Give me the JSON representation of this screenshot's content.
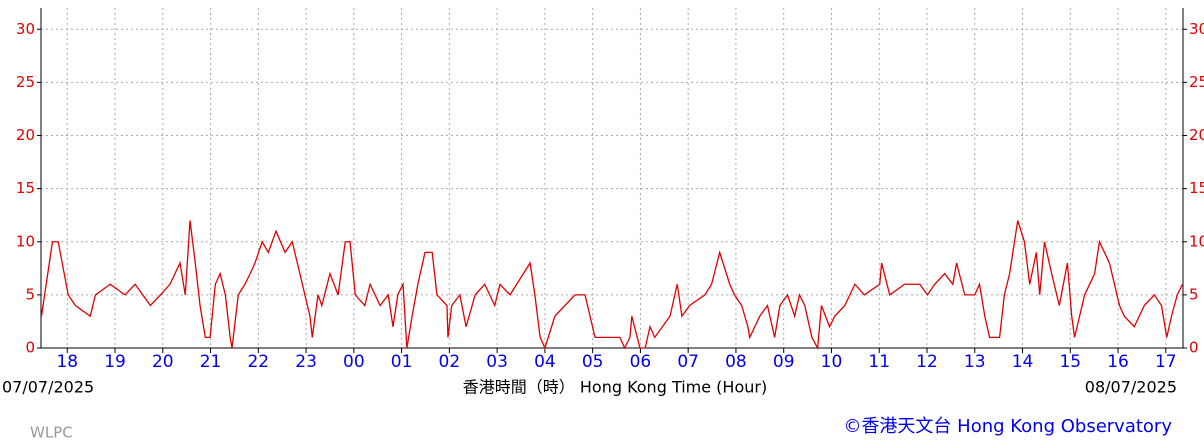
{
  "chart_data": {
    "type": "line",
    "color": "#e00000",
    "grid": true,
    "x": [
      17.46,
      17.69,
      17.81,
      18.02,
      18.17,
      18.48,
      18.59,
      18.9,
      19.21,
      19.42,
      19.74,
      19.95,
      20.15,
      20.36,
      20.47,
      20.57,
      20.68,
      20.78,
      20.89,
      20.99,
      21.1,
      21.2,
      21.31,
      21.41,
      21.45,
      21.58,
      21.72,
      21.83,
      21.93,
      22.08,
      22.21,
      22.37,
      22.56,
      22.71,
      22.87,
      23.08,
      23.13,
      23.25,
      23.33,
      23.5,
      23.67,
      23.82,
      23.92,
      24.03,
      24.23,
      24.34,
      24.55,
      24.72,
      24.82,
      24.92,
      25.03,
      25.11,
      25.22,
      25.34,
      25.49,
      25.64,
      25.74,
      25.95,
      25.97,
      26.05,
      26.22,
      26.35,
      26.54,
      26.74,
      26.95,
      27.06,
      27.27,
      27.69,
      27.79,
      27.9,
      28.0,
      28.21,
      28.42,
      28.63,
      28.84,
      29.05,
      29.57,
      29.67,
      29.78,
      29.82,
      29.99,
      30.1,
      30.2,
      30.3,
      30.62,
      30.77,
      30.87,
      31.03,
      31.35,
      31.49,
      31.66,
      31.87,
      31.97,
      32.12,
      32.25,
      32.29,
      32.5,
      32.66,
      32.81,
      32.92,
      33.08,
      33.23,
      33.33,
      33.44,
      33.59,
      33.71,
      33.79,
      33.96,
      34.07,
      34.28,
      34.49,
      34.69,
      35.01,
      35.05,
      35.22,
      35.53,
      35.85,
      36.01,
      36.16,
      36.37,
      36.54,
      36.62,
      36.79,
      37.0,
      37.1,
      37.21,
      37.31,
      37.52,
      37.62,
      37.73,
      37.9,
      38.04,
      38.15,
      38.29,
      38.36,
      38.46,
      38.61,
      38.77,
      38.94,
      39.03,
      39.09,
      39.3,
      39.51,
      39.61,
      39.82,
      40.03,
      40.13,
      40.34,
      40.55,
      40.76,
      40.91,
      41.02,
      41.12,
      41.24,
      41.35
    ],
    "values": [
      3,
      10,
      10,
      5,
      4,
      3,
      5,
      6,
      5,
      6,
      4,
      5,
      6,
      8,
      5,
      12,
      8,
      4,
      1,
      1,
      6,
      7,
      5,
      1,
      0,
      5,
      6,
      7,
      8,
      10,
      9,
      11,
      9,
      10,
      7,
      3,
      1,
      5,
      4,
      7,
      5,
      10,
      10,
      5,
      4,
      6,
      4,
      5,
      2,
      5,
      6,
      0,
      3,
      6,
      9,
      9,
      5,
      4,
      1,
      4,
      5,
      2,
      5,
      6,
      4,
      6,
      5,
      8,
      5,
      1,
      0,
      3,
      4,
      5,
      5,
      1,
      1,
      0,
      1,
      3,
      0,
      0,
      2,
      1,
      3,
      6,
      3,
      4,
      5,
      6,
      9,
      6,
      5,
      4,
      2,
      1,
      3,
      4,
      1,
      4,
      5,
      3,
      5,
      4,
      1,
      0,
      4,
      2,
      3,
      4,
      6,
      5,
      6,
      8,
      5,
      6,
      6,
      5,
      6,
      7,
      6,
      8,
      5,
      5,
      6,
      3,
      1,
      1,
      5,
      7,
      12,
      10,
      6,
      9,
      5,
      10,
      7,
      4,
      8,
      3,
      1,
      5,
      7,
      10,
      8,
      4,
      3,
      2,
      4,
      5,
      4,
      1,
      3,
      5,
      6
    ],
    "xlim": [
      17.45,
      41.36
    ],
    "xticks": [
      18,
      19,
      20,
      21,
      22,
      23,
      {
        "value": 24,
        "label": "00"
      },
      {
        "value": 25,
        "label": "01"
      },
      {
        "value": 26,
        "label": "02"
      },
      {
        "value": 27,
        "label": "03"
      },
      {
        "value": 28,
        "label": "04"
      },
      {
        "value": 29,
        "label": "05"
      },
      {
        "value": 30,
        "label": "06"
      },
      {
        "value": 31,
        "label": "07"
      },
      {
        "value": 32,
        "label": "08"
      },
      {
        "value": 33,
        "label": "09"
      },
      {
        "value": 34,
        "label": "10"
      },
      {
        "value": 35,
        "label": "11"
      },
      {
        "value": 36,
        "label": "12"
      },
      {
        "value": 37,
        "label": "13"
      },
      {
        "value": 38,
        "label": "14"
      },
      {
        "value": 39,
        "label": "15"
      },
      {
        "value": 40,
        "label": "16"
      },
      {
        "value": 41,
        "label": "17"
      }
    ],
    "ylim": [
      0,
      32
    ],
    "yticks": [
      0,
      5,
      10,
      15,
      20,
      25,
      30
    ],
    "date_start": "07/07/2025",
    "date_end": "08/07/2025",
    "xlabel": "香港時間（時） Hong Kong Time (Hour)",
    "credit": "©香港天文台 Hong Kong Observatory",
    "station": "WLPC"
  }
}
